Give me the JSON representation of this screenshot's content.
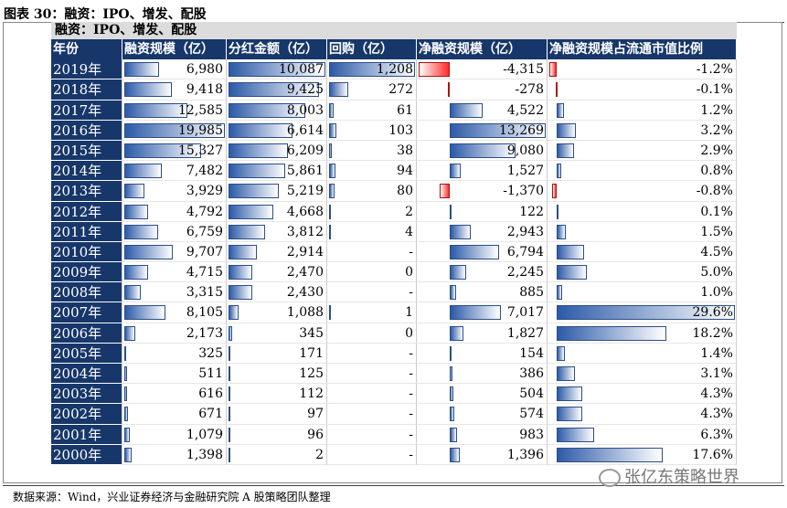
{
  "figure": {
    "title": "图表 30：融资：IPO、增发、配股",
    "subtitle": "融资：IPO、增发、配股",
    "source": "数据来源：Wind，兴业证券经济与金融研究院 A 股策略团队整理",
    "watermark": "张亿东策略世界",
    "bar_color": "#2c5aa8",
    "negative_bar_color": "#ff2a2a",
    "header_color": "#17376a"
  },
  "table": {
    "columns": [
      "年份",
      "融资规模（亿）",
      "分红金额（亿）",
      "回购（亿）",
      "净融资规模（亿）",
      "净融资规模占流通市值比例"
    ],
    "rows": [
      {
        "year": "2019年",
        "financing": "6,980",
        "dividend": "10,087",
        "buyback": "1,208",
        "net": "-4,315",
        "ratio": "-1.2%"
      },
      {
        "year": "2018年",
        "financing": "9,418",
        "dividend": "9,425",
        "buyback": "272",
        "net": "-278",
        "ratio": "-0.1%"
      },
      {
        "year": "2017年",
        "financing": "12,585",
        "dividend": "8,003",
        "buyback": "61",
        "net": "4,522",
        "ratio": "1.2%"
      },
      {
        "year": "2016年",
        "financing": "19,985",
        "dividend": "6,614",
        "buyback": "103",
        "net": "13,269",
        "ratio": "3.2%"
      },
      {
        "year": "2015年",
        "financing": "15,327",
        "dividend": "6,209",
        "buyback": "38",
        "net": "9,080",
        "ratio": "2.9%"
      },
      {
        "year": "2014年",
        "financing": "7,482",
        "dividend": "5,861",
        "buyback": "94",
        "net": "1,527",
        "ratio": "0.8%"
      },
      {
        "year": "2013年",
        "financing": "3,929",
        "dividend": "5,219",
        "buyback": "80",
        "net": "-1,370",
        "ratio": "-0.8%"
      },
      {
        "year": "2012年",
        "financing": "4,792",
        "dividend": "4,668",
        "buyback": "2",
        "net": "122",
        "ratio": "0.1%"
      },
      {
        "year": "2011年",
        "financing": "6,759",
        "dividend": "3,812",
        "buyback": "4",
        "net": "2,943",
        "ratio": "1.5%"
      },
      {
        "year": "2010年",
        "financing": "9,707",
        "dividend": "2,914",
        "buyback": "-",
        "net": "6,794",
        "ratio": "4.5%"
      },
      {
        "year": "2009年",
        "financing": "4,715",
        "dividend": "2,470",
        "buyback": "0",
        "net": "2,245",
        "ratio": "5.0%"
      },
      {
        "year": "2008年",
        "financing": "3,315",
        "dividend": "2,430",
        "buyback": "-",
        "net": "885",
        "ratio": "1.0%"
      },
      {
        "year": "2007年",
        "financing": "8,105",
        "dividend": "1,088",
        "buyback": "1",
        "net": "7,017",
        "ratio": "29.6%"
      },
      {
        "year": "2006年",
        "financing": "2,173",
        "dividend": "345",
        "buyback": "0",
        "net": "1,827",
        "ratio": "18.2%"
      },
      {
        "year": "2005年",
        "financing": "325",
        "dividend": "171",
        "buyback": "-",
        "net": "154",
        "ratio": "1.4%"
      },
      {
        "year": "2004年",
        "financing": "511",
        "dividend": "125",
        "buyback": "-",
        "net": "386",
        "ratio": "3.1%"
      },
      {
        "year": "2003年",
        "financing": "616",
        "dividend": "112",
        "buyback": "-",
        "net": "504",
        "ratio": "4.3%"
      },
      {
        "year": "2002年",
        "financing": "671",
        "dividend": "97",
        "buyback": "-",
        "net": "574",
        "ratio": "4.3%"
      },
      {
        "year": "2001年",
        "financing": "1,079",
        "dividend": "96",
        "buyback": "-",
        "net": "983",
        "ratio": "6.3%"
      },
      {
        "year": "2000年",
        "financing": "1,398",
        "dividend": "2",
        "buyback": "-",
        "net": "1,396",
        "ratio": "17.6%"
      }
    ]
  }
}
